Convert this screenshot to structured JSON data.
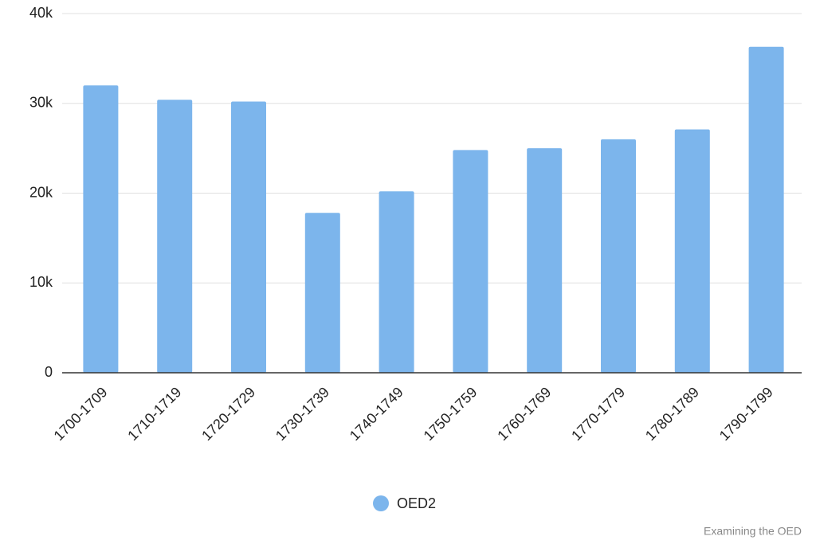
{
  "chart_data": {
    "type": "bar",
    "categories": [
      "1700-1709",
      "1710-1719",
      "1720-1729",
      "1730-1739",
      "1740-1749",
      "1750-1759",
      "1760-1769",
      "1770-1779",
      "1780-1789",
      "1790-1799"
    ],
    "series": [
      {
        "name": "OED2",
        "color": "#7cb5ec",
        "values": [
          32000,
          30400,
          30200,
          17800,
          20200,
          24800,
          25000,
          26000,
          27100,
          36300
        ]
      }
    ],
    "ylim": [
      0,
      40000
    ],
    "yticks": [
      0,
      {
        "value": 10000,
        "label": "10k"
      },
      {
        "value": 20000,
        "label": "20k"
      },
      {
        "value": 30000,
        "label": "30k"
      },
      {
        "value": 40000,
        "label": "40k"
      }
    ],
    "grid": true,
    "source": "Examining the OED"
  }
}
